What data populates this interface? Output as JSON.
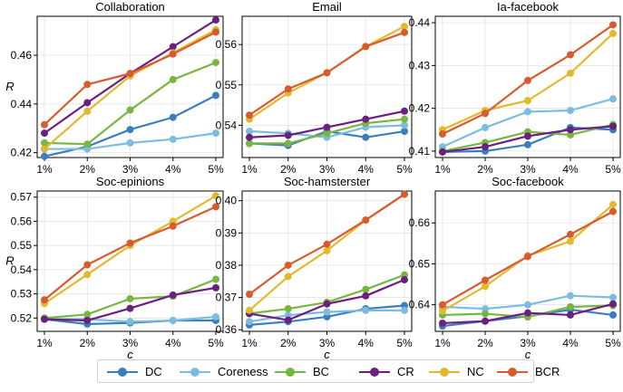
{
  "colors": {
    "DC": "#3a7ec0",
    "Coreness": "#7bbde0",
    "BC": "#78b642",
    "CR": "#6b1f7f",
    "NC": "#e3b92c",
    "BCR": "#d85b30"
  },
  "legend": [
    {
      "key": "DC",
      "label": "DC"
    },
    {
      "key": "Coreness",
      "label": "Coreness"
    },
    {
      "key": "BC",
      "label": "BC"
    },
    {
      "key": "CR",
      "label": "CR"
    },
    {
      "key": "NC",
      "label": "NC"
    },
    {
      "key": "BCR",
      "label": "BCR"
    }
  ],
  "chart_data": [
    {
      "type": "line",
      "title": "Collaboration",
      "xlabel": "",
      "ylabel": "R",
      "categories": [
        "1%",
        "2%",
        "3%",
        "4%",
        "5%"
      ],
      "ylim": [
        0.418,
        0.476
      ],
      "yticks": [
        0.42,
        0.44,
        0.46
      ],
      "ytick_labels": [
        "0.42",
        "0.44",
        "0.46"
      ],
      "series": [
        {
          "name": "DC",
          "values": [
            0.4185,
            0.4225,
            0.4295,
            0.4345,
            0.4435
          ]
        },
        {
          "name": "Coreness",
          "values": [
            0.4215,
            0.4215,
            0.424,
            0.4255,
            0.428
          ]
        },
        {
          "name": "BC",
          "values": [
            0.424,
            0.4235,
            0.4375,
            0.45,
            0.457
          ]
        },
        {
          "name": "CR",
          "values": [
            0.428,
            0.4405,
            0.4525,
            0.4635,
            0.4745
          ]
        },
        {
          "name": "NC",
          "values": [
            0.4215,
            0.437,
            0.4515,
            0.461,
            0.4705
          ]
        },
        {
          "name": "BCR",
          "values": [
            0.4315,
            0.448,
            0.4525,
            0.4605,
            0.4695
          ]
        }
      ]
    },
    {
      "type": "line",
      "title": "Email",
      "xlabel": "",
      "ylabel": "",
      "categories": [
        "1%",
        "2%",
        "3%",
        "4%",
        "5%"
      ],
      "ylim": [
        0.532,
        0.567
      ],
      "yticks": [
        0.54,
        0.55,
        0.56
      ],
      "ytick_labels": [
        "0.54",
        "0.55",
        "0.56"
      ],
      "series": [
        {
          "name": "DC",
          "values": [
            0.5355,
            0.535,
            0.5385,
            0.537,
            0.5385
          ]
        },
        {
          "name": "Coreness",
          "values": [
            0.5385,
            0.538,
            0.537,
            0.5395,
            0.54
          ]
        },
        {
          "name": "BC",
          "values": [
            0.5355,
            0.5355,
            0.538,
            0.5405,
            0.5415
          ]
        },
        {
          "name": "CR",
          "values": [
            0.537,
            0.5375,
            0.5395,
            0.5415,
            0.5435
          ]
        },
        {
          "name": "NC",
          "values": [
            0.5415,
            0.548,
            0.553,
            0.5595,
            0.5645
          ]
        },
        {
          "name": "BCR",
          "values": [
            0.5425,
            0.549,
            0.553,
            0.5595,
            0.563
          ]
        }
      ]
    },
    {
      "type": "line",
      "title": "Ia-facebook",
      "xlabel": "",
      "ylabel": "",
      "categories": [
        "1%",
        "2%",
        "3%",
        "4%",
        "5%"
      ],
      "ylim": [
        0.4085,
        0.4415
      ],
      "yticks": [
        0.41,
        0.42,
        0.43,
        0.44
      ],
      "ytick_labels": [
        "0.41",
        "0.42",
        "0.43",
        "0.44"
      ],
      "series": [
        {
          "name": "DC",
          "values": [
            0.4098,
            0.41,
            0.4115,
            0.4155,
            0.415
          ]
        },
        {
          "name": "Coreness",
          "values": [
            0.411,
            0.4155,
            0.4192,
            0.4195,
            0.4222
          ]
        },
        {
          "name": "BC",
          "values": [
            0.41,
            0.412,
            0.4145,
            0.4138,
            0.4162
          ]
        },
        {
          "name": "CR",
          "values": [
            0.4098,
            0.411,
            0.4135,
            0.415,
            0.4158
          ]
        },
        {
          "name": "NC",
          "values": [
            0.415,
            0.4195,
            0.4218,
            0.4282,
            0.4375
          ]
        },
        {
          "name": "BCR",
          "values": [
            0.414,
            0.4188,
            0.4265,
            0.4325,
            0.4395
          ]
        }
      ]
    },
    {
      "type": "line",
      "title": "Soc-epinions",
      "xlabel": "c",
      "ylabel": "R",
      "categories": [
        "1%",
        "2%",
        "3%",
        "4%",
        "5%"
      ],
      "ylim": [
        0.5145,
        0.5725
      ],
      "yticks": [
        0.52,
        0.53,
        0.54,
        0.55,
        0.56,
        0.57
      ],
      "ytick_labels": [
        "0.52",
        "0.53",
        "0.54",
        "0.55",
        "0.56",
        "0.57"
      ],
      "series": [
        {
          "name": "DC",
          "values": [
            0.5195,
            0.5175,
            0.518,
            0.519,
            0.519
          ]
        },
        {
          "name": "Coreness",
          "values": [
            0.5195,
            0.5195,
            0.5185,
            0.519,
            0.5205
          ]
        },
        {
          "name": "BC",
          "values": [
            0.52,
            0.5215,
            0.528,
            0.529,
            0.536
          ]
        },
        {
          "name": "CR",
          "values": [
            0.5195,
            0.519,
            0.524,
            0.5295,
            0.5325
          ]
        },
        {
          "name": "NC",
          "values": [
            0.526,
            0.538,
            0.55,
            0.56,
            0.5705
          ]
        },
        {
          "name": "BCR",
          "values": [
            0.5275,
            0.542,
            0.551,
            0.558,
            0.566
          ]
        }
      ]
    },
    {
      "type": "line",
      "title": "Soc-hamsterster",
      "xlabel": "c",
      "ylabel": "",
      "categories": [
        "1%",
        "2%",
        "3%",
        "4%",
        "5%"
      ],
      "ylim": [
        0.3595,
        0.403
      ],
      "yticks": [
        0.36,
        0.37,
        0.38,
        0.39,
        0.4
      ],
      "ytick_labels": [
        "0.36",
        "0.37",
        "0.38",
        "0.39",
        "0.40"
      ],
      "series": [
        {
          "name": "DC",
          "values": [
            0.3615,
            0.3625,
            0.364,
            0.3665,
            0.3675
          ]
        },
        {
          "name": "Coreness",
          "values": [
            0.3625,
            0.3645,
            0.3655,
            0.366,
            0.366
          ]
        },
        {
          "name": "BC",
          "values": [
            0.365,
            0.3665,
            0.3685,
            0.3725,
            0.377
          ]
        },
        {
          "name": "CR",
          "values": [
            0.365,
            0.363,
            0.368,
            0.3705,
            0.3755
          ]
        },
        {
          "name": "NC",
          "values": [
            0.366,
            0.3765,
            0.3845,
            0.394,
            0.402
          ]
        },
        {
          "name": "BCR",
          "values": [
            0.371,
            0.38,
            0.3865,
            0.394,
            0.402
          ]
        }
      ]
    },
    {
      "type": "line",
      "title": "Soc-facebook",
      "xlabel": "c",
      "ylabel": "",
      "categories": [
        "1%",
        "2%",
        "3%",
        "4%",
        "5%"
      ],
      "ylim": [
        0.6335,
        0.6678
      ],
      "yticks": [
        0.64,
        0.65,
        0.66
      ],
      "ytick_labels": [
        "0.64",
        "0.65",
        "0.66"
      ],
      "series": [
        {
          "name": "DC",
          "values": [
            0.6348,
            0.636,
            0.6372,
            0.6388,
            0.6375
          ]
        },
        {
          "name": "Coreness",
          "values": [
            0.6395,
            0.639,
            0.64,
            0.6422,
            0.6418
          ]
        },
        {
          "name": "BC",
          "values": [
            0.6375,
            0.6378,
            0.637,
            0.6395,
            0.6398
          ]
        },
        {
          "name": "CR",
          "values": [
            0.6355,
            0.636,
            0.638,
            0.6375,
            0.6402
          ]
        },
        {
          "name": "NC",
          "values": [
            0.6385,
            0.6445,
            0.652,
            0.6555,
            0.6645
          ]
        },
        {
          "name": "BCR",
          "values": [
            0.64,
            0.646,
            0.6518,
            0.6572,
            0.6628
          ]
        }
      ]
    }
  ]
}
